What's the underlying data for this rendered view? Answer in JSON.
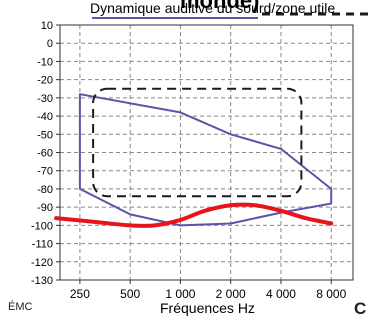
{
  "heading_fragment": "monde)",
  "corner_left": "ÉMC",
  "corner_right": "C",
  "colors": {
    "zone": "#5a55a8",
    "red_curve": "#e8141b",
    "dashed": "#1a1a1a",
    "grid": "#888888"
  },
  "chart_data": {
    "type": "line",
    "title": "Dynamique auditive du sourd/zone utile",
    "xlabel": "Fréquences Hz",
    "ylabel": "",
    "x_scale": "log",
    "x_ticks": [
      250,
      500,
      1000,
      2000,
      4000,
      8000
    ],
    "x_tick_labels": [
      "250",
      "500",
      "1 000",
      "2 000",
      "4 000",
      "8 000"
    ],
    "ylim": [
      -130,
      10
    ],
    "y_ticks": [
      10,
      0,
      -10,
      -20,
      -30,
      -40,
      -50,
      -60,
      -70,
      -80,
      -90,
      -100,
      -110,
      -120,
      -130
    ],
    "grid": true,
    "series": [
      {
        "name": "",
        "kind": "zone",
        "points": [
          [
            250,
            -28
          ],
          [
            1000,
            -38
          ],
          [
            2000,
            -50
          ],
          [
            4000,
            -58
          ],
          [
            8000,
            -80
          ],
          [
            8000,
            -88
          ],
          [
            4000,
            -93
          ],
          [
            2000,
            -99
          ],
          [
            1000,
            -100
          ],
          [
            500,
            -94
          ],
          [
            250,
            -80
          ]
        ]
      },
      {
        "name": "",
        "kind": "curve",
        "points": [
          [
            180,
            -96
          ],
          [
            300,
            -98
          ],
          [
            500,
            -100
          ],
          [
            700,
            -100
          ],
          [
            1000,
            -97
          ],
          [
            1400,
            -92
          ],
          [
            2000,
            -89
          ],
          [
            2800,
            -89
          ],
          [
            4000,
            -92
          ],
          [
            5600,
            -96
          ],
          [
            8000,
            -99
          ]
        ]
      },
      {
        "name": "",
        "kind": "dashed-box",
        "points": [
          [
            300,
            -25
          ],
          [
            5300,
            -25
          ],
          [
            5300,
            -84
          ],
          [
            300,
            -84
          ]
        ]
      }
    ]
  }
}
